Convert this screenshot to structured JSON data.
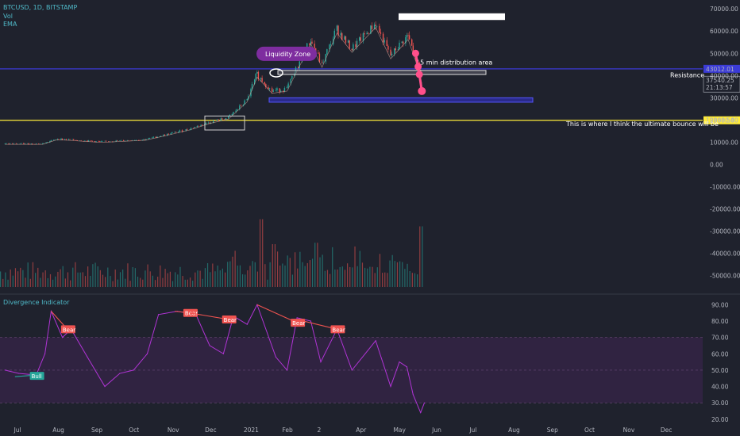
{
  "header": {
    "symbol": "BTCUSD, 1D, BITSTAMP",
    "studies": [
      "Vol",
      "EMA"
    ]
  },
  "colors": {
    "background": "#1f222d",
    "price_line": "#f2b2a3",
    "up": "#26a69a",
    "down": "#ef5350",
    "resistance": "#3b3bd6",
    "support": "#ffeb3b",
    "indicator_line": "#b134d6",
    "pink": "#ff4f8b",
    "liquidity_badge": "#7e2d9f"
  },
  "chart_data": [
    {
      "type": "candlestick",
      "name": "BTCUSD",
      "x_unit": "date",
      "ylim": [
        -58000,
        74000
      ],
      "y_ticks": [
        "70000.00",
        "60000.00",
        "50000.00",
        "40000.00",
        "30000.00",
        "20000.00",
        "10000.00",
        "0.00",
        "-10000.00",
        "-20000.00",
        "-30000.00",
        "-40000.00",
        "-50000.00"
      ],
      "x_ticks": [
        "Jul",
        "Aug",
        "Sep",
        "Oct",
        "Nov",
        "Dec",
        "2021",
        "Feb",
        "2",
        "Apr",
        "May",
        "Jun",
        "Jul",
        "Aug",
        "Sep",
        "Oct",
        "Nov",
        "Dec"
      ],
      "close_path": [
        {
          "x": "2020-06-20",
          "y": 9300
        },
        {
          "x": "2020-07-20",
          "y": 9300
        },
        {
          "x": "2020-08-01",
          "y": 11500
        },
        {
          "x": "2020-09-05",
          "y": 10200
        },
        {
          "x": "2020-10-10",
          "y": 11200
        },
        {
          "x": "2020-10-25",
          "y": 13100
        },
        {
          "x": "2020-11-15",
          "y": 16000
        },
        {
          "x": "2020-12-01",
          "y": 19000
        },
        {
          "x": "2020-12-16",
          "y": 21000
        },
        {
          "x": "2020-12-31",
          "y": 29000
        },
        {
          "x": "2021-01-08",
          "y": 40500
        },
        {
          "x": "2021-01-20",
          "y": 33000
        },
        {
          "x": "2021-02-01",
          "y": 34000
        },
        {
          "x": "2021-02-20",
          "y": 56000
        },
        {
          "x": "2021-03-01",
          "y": 45000
        },
        {
          "x": "2021-03-13",
          "y": 61000
        },
        {
          "x": "2021-03-25",
          "y": 52000
        },
        {
          "x": "2021-04-13",
          "y": 63500
        },
        {
          "x": "2021-04-25",
          "y": 49000
        },
        {
          "x": "2021-05-09",
          "y": 58000
        },
        {
          "x": "2021-05-15",
          "y": 48000
        },
        {
          "x": "2021-05-20",
          "y": 37540
        }
      ],
      "last_price": "37540.25",
      "countdown": "21:13:57",
      "levels": [
        {
          "label": "43012.01",
          "value": 43012,
          "color": "#3b3bd6"
        },
        {
          "label": "19868.54",
          "value": 19868,
          "color": "#ffeb3b"
        }
      ],
      "annotations": {
        "liquidity_zone": "Liquidity Zone",
        "distribution": "15 min distribution area",
        "resistance": "Resistance",
        "bounce": "This is where I think the ultimate bounce will be"
      }
    },
    {
      "type": "bar",
      "name": "Vol",
      "description_values": "volume bars under price",
      "peaks": [
        {
          "x": "2021-01-11",
          "rel": 0.95
        },
        {
          "x": "2021-05-19",
          "rel": 0.85
        },
        {
          "x": "2021-02-24",
          "rel": 0.62
        },
        {
          "x": "2021-01-21",
          "rel": 0.6
        }
      ]
    },
    {
      "type": "line",
      "name": "Divergence Indicator",
      "ylim": [
        17,
        96
      ],
      "y_ticks": [
        "90.00",
        "80.00",
        "70.00",
        "60.00",
        "50.00",
        "40.00",
        "30.00",
        "20.00"
      ],
      "band": [
        30,
        70
      ],
      "points": [
        {
          "x": "2020-06-20",
          "y": 50
        },
        {
          "x": "2020-07-01",
          "y": 48
        },
        {
          "x": "2020-07-15",
          "y": 47
        },
        {
          "x": "2020-07-22",
          "y": 60
        },
        {
          "x": "2020-07-27",
          "y": 86
        },
        {
          "x": "2020-08-05",
          "y": 70
        },
        {
          "x": "2020-08-12",
          "y": 75
        },
        {
          "x": "2020-08-25",
          "y": 58
        },
        {
          "x": "2020-09-08",
          "y": 40
        },
        {
          "x": "2020-09-20",
          "y": 48
        },
        {
          "x": "2020-10-01",
          "y": 50
        },
        {
          "x": "2020-10-12",
          "y": 60
        },
        {
          "x": "2020-10-21",
          "y": 84
        },
        {
          "x": "2020-11-05",
          "y": 86
        },
        {
          "x": "2020-11-20",
          "y": 84
        },
        {
          "x": "2020-12-01",
          "y": 65
        },
        {
          "x": "2020-12-12",
          "y": 60
        },
        {
          "x": "2020-12-20",
          "y": 83
        },
        {
          "x": "2020-12-31",
          "y": 78
        },
        {
          "x": "2021-01-08",
          "y": 90
        },
        {
          "x": "2021-01-23",
          "y": 58
        },
        {
          "x": "2021-02-01",
          "y": 50
        },
        {
          "x": "2021-02-09",
          "y": 82
        },
        {
          "x": "2021-02-20",
          "y": 80
        },
        {
          "x": "2021-02-28",
          "y": 55
        },
        {
          "x": "2021-03-13",
          "y": 75
        },
        {
          "x": "2021-03-25",
          "y": 50
        },
        {
          "x": "2021-04-13",
          "y": 68
        },
        {
          "x": "2021-04-25",
          "y": 40
        },
        {
          "x": "2021-05-02",
          "y": 55
        },
        {
          "x": "2021-05-08",
          "y": 52
        },
        {
          "x": "2021-05-13",
          "y": 35
        },
        {
          "x": "2021-05-19",
          "y": 24
        },
        {
          "x": "2021-05-22",
          "y": 30
        }
      ],
      "divergences": [
        {
          "from": {
            "x": "2020-07-27",
            "y": 86
          },
          "to": {
            "x": "2020-08-09",
            "y": 75
          },
          "label": "Bear"
        },
        {
          "from": {
            "x": "2020-11-03",
            "y": 86
          },
          "to": {
            "x": "2020-11-15",
            "y": 85
          },
          "label": "Bear"
        },
        {
          "from": {
            "x": "2020-11-15",
            "y": 85
          },
          "to": {
            "x": "2020-12-16",
            "y": 81
          },
          "label": "Bear"
        },
        {
          "from": {
            "x": "2021-01-08",
            "y": 90
          },
          "to": {
            "x": "2021-02-09",
            "y": 79
          },
          "label": "Bear"
        },
        {
          "from": {
            "x": "2021-02-09",
            "y": 81
          },
          "to": {
            "x": "2021-03-13",
            "y": 75
          },
          "label": "Bear"
        },
        {
          "from": {
            "x": "2020-06-28",
            "y": 46
          },
          "to": {
            "x": "2020-07-15",
            "y": 47
          },
          "label": "Bull"
        }
      ]
    }
  ]
}
